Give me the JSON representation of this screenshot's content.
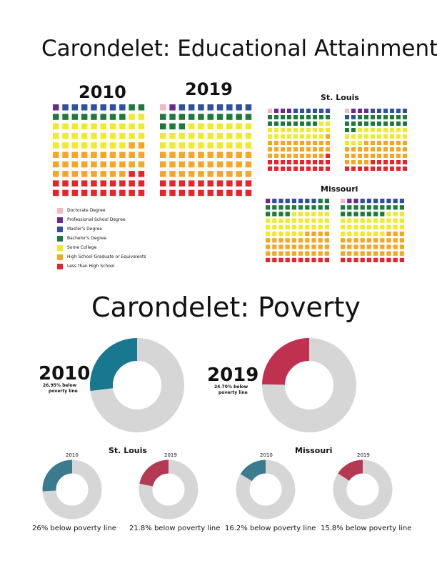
{
  "colors": {
    "doctorate": "#f4b7c6",
    "professional": "#6a2a8c",
    "masters": "#2f4fa0",
    "bachelors": "#1e7a3a",
    "some_college": "#f1ea2a",
    "high_school": "#f5a623",
    "less_than_hs": "#e8232a",
    "donut_bg": "#d6d6d6",
    "teal_main": "#17788f",
    "teal_small": "#3a7b8e",
    "crimson_main": "#c0314f",
    "crimson_small": "#b33a52"
  },
  "education": {
    "title": "Carondelet: Educational Attainment",
    "year_2010": "2010",
    "year_2019": "2019",
    "stlouis_label": "St. Louis",
    "missouri_label": "Missouri",
    "legend": [
      {
        "label": "Doctorate Degree",
        "key": "doctorate"
      },
      {
        "label": "Professional School Degree",
        "key": "professional"
      },
      {
        "label": "Master's Degree",
        "key": "masters"
      },
      {
        "label": "Bachelor's Degree",
        "key": "bachelors"
      },
      {
        "label": "Some College",
        "key": "some_college"
      },
      {
        "label": "High School Graduate or Equivalents",
        "key": "high_school"
      },
      {
        "label": "Less than High School",
        "key": "less_than_hs"
      }
    ]
  },
  "poverty": {
    "title": "Carondelet: Poverty",
    "stlouis_label": "St. Louis",
    "missouri_label": "Missouri",
    "main": [
      {
        "year": "2010",
        "caption_line1": "26.95% below",
        "caption_line2": "poverty line",
        "percent": 26.95
      },
      {
        "year": "2019",
        "caption_line1": "24.70% below",
        "caption_line2": "poverty line",
        "percent": 24.7
      }
    ],
    "small": [
      {
        "year": "2010",
        "caption": "26% below poverty line",
        "percent": 26
      },
      {
        "year": "2019",
        "caption": "21.8% below poverty line",
        "percent": 21.8
      },
      {
        "year": "2010",
        "caption": "16.2% below poverty line",
        "percent": 16.2
      },
      {
        "year": "2019",
        "caption": "15.8% below poverty line",
        "percent": 15.8
      }
    ]
  },
  "chart_data": [
    {
      "type": "waffle",
      "title": "Carondelet: Educational Attainment",
      "grids": [
        {
          "name": "Carondelet 2010",
          "counts": {
            "doctorate": 0,
            "professional": 1,
            "masters": 7,
            "bachelors": 10,
            "some_college": 30,
            "high_school": 30,
            "less_than_hs": 22
          }
        },
        {
          "name": "Carondelet 2019",
          "counts": {
            "doctorate": 1,
            "professional": 1,
            "masters": 8,
            "bachelors": 13,
            "some_college": 27,
            "high_school": 30,
            "less_than_hs": 20
          }
        },
        {
          "name": "St. Louis 2010",
          "counts": {
            "doctorate": 1,
            "professional": 3,
            "masters": 6,
            "bachelors": 18,
            "some_college": 21,
            "high_school": 30,
            "less_than_hs": 21
          }
        },
        {
          "name": "St. Louis 2019",
          "counts": {
            "doctorate": 1,
            "professional": 3,
            "masters": 8,
            "bachelors": 20,
            "some_college": 21,
            "high_school": 31,
            "less_than_hs": 16
          }
        },
        {
          "name": "Missouri 2010",
          "counts": {
            "doctorate": 0,
            "professional": 1,
            "masters": 7,
            "bachelors": 16,
            "some_college": 32,
            "high_school": 34,
            "less_than_hs": 10
          }
        },
        {
          "name": "Missouri 2019",
          "counts": {
            "doctorate": 1,
            "professional": 2,
            "masters": 7,
            "bachelors": 17,
            "some_college": 30,
            "high_school": 33,
            "less_than_hs": 10
          }
        }
      ]
    },
    {
      "type": "pie",
      "title": "Carondelet: Poverty",
      "series": [
        {
          "name": "Carondelet 2010",
          "values": [
            26.95,
            73.05
          ]
        },
        {
          "name": "Carondelet 2019",
          "values": [
            24.7,
            75.3
          ]
        },
        {
          "name": "St. Louis 2010",
          "values": [
            26,
            74
          ]
        },
        {
          "name": "St. Louis 2019",
          "values": [
            21.8,
            78.2
          ]
        },
        {
          "name": "Missouri 2010",
          "values": [
            16.2,
            83.8
          ]
        },
        {
          "name": "Missouri 2019",
          "values": [
            15.8,
            84.2
          ]
        }
      ]
    }
  ]
}
